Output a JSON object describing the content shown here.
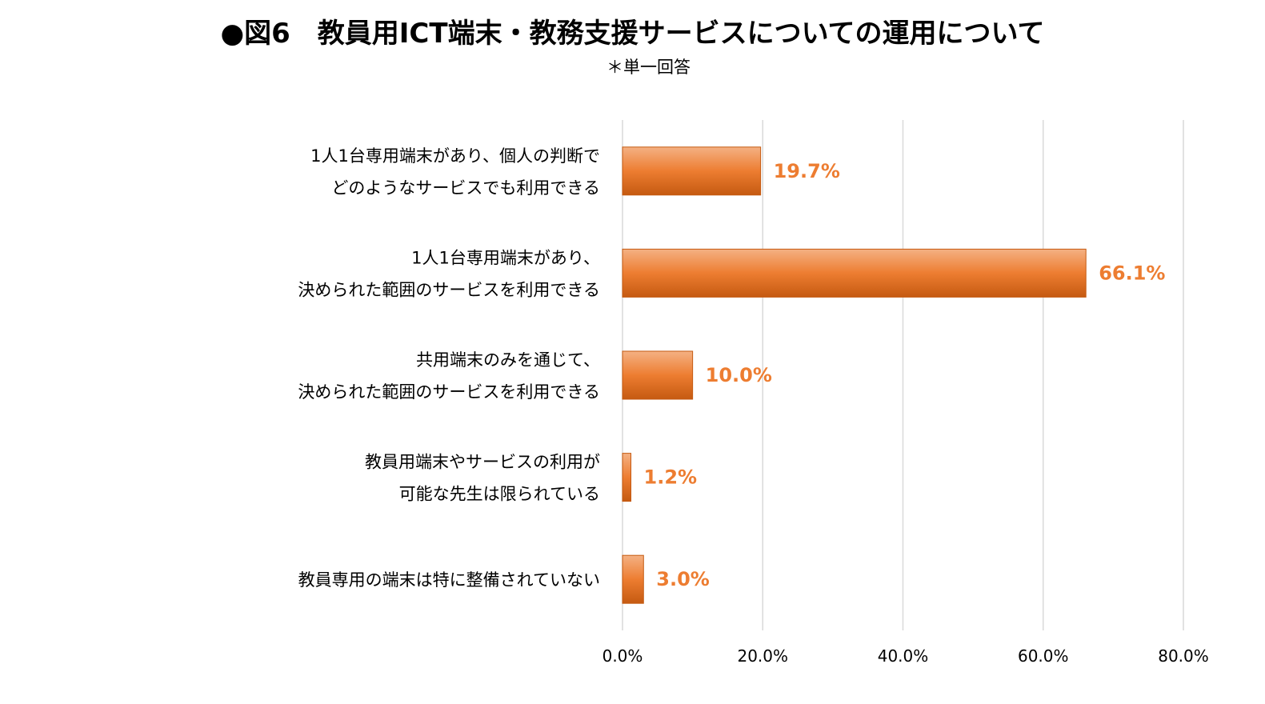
{
  "title": "●図6　教員用ICT端末・教務支援サービスについての運用について",
  "subtitle": "＊単一回答",
  "colors": {
    "bar_light": "#f4b183",
    "bar_mid": "#ed7d31",
    "bar_dark": "#c55a11",
    "label": "#ed7d31",
    "grid": "#d9d9d9"
  },
  "chart_data": {
    "type": "bar",
    "orientation": "horizontal",
    "categories": [
      [
        "1人1台専用端末があり、個人の判断で",
        "どのようなサービスでも利用できる"
      ],
      [
        "1人1台専用端末があり、",
        "決められた範囲のサービスを利用できる"
      ],
      [
        "共用端末のみを通じて、",
        "決められた範囲のサービスを利用できる"
      ],
      [
        "教員用端末やサービスの利用が",
        "可能な先生は限られている"
      ],
      [
        "教員専用の端末は特に整備されていない"
      ]
    ],
    "values": [
      19.7,
      66.1,
      10.0,
      1.2,
      3.0
    ],
    "value_labels": [
      "19.7%",
      "66.1%",
      "10.0%",
      "1.2%",
      "3.0%"
    ],
    "xlim": [
      0,
      80
    ],
    "ticks": [
      0,
      20,
      40,
      60,
      80
    ],
    "tick_labels": [
      "0.0%",
      "20.0%",
      "40.0%",
      "60.0%",
      "80.0%"
    ],
    "grid": true,
    "legend": "none"
  }
}
